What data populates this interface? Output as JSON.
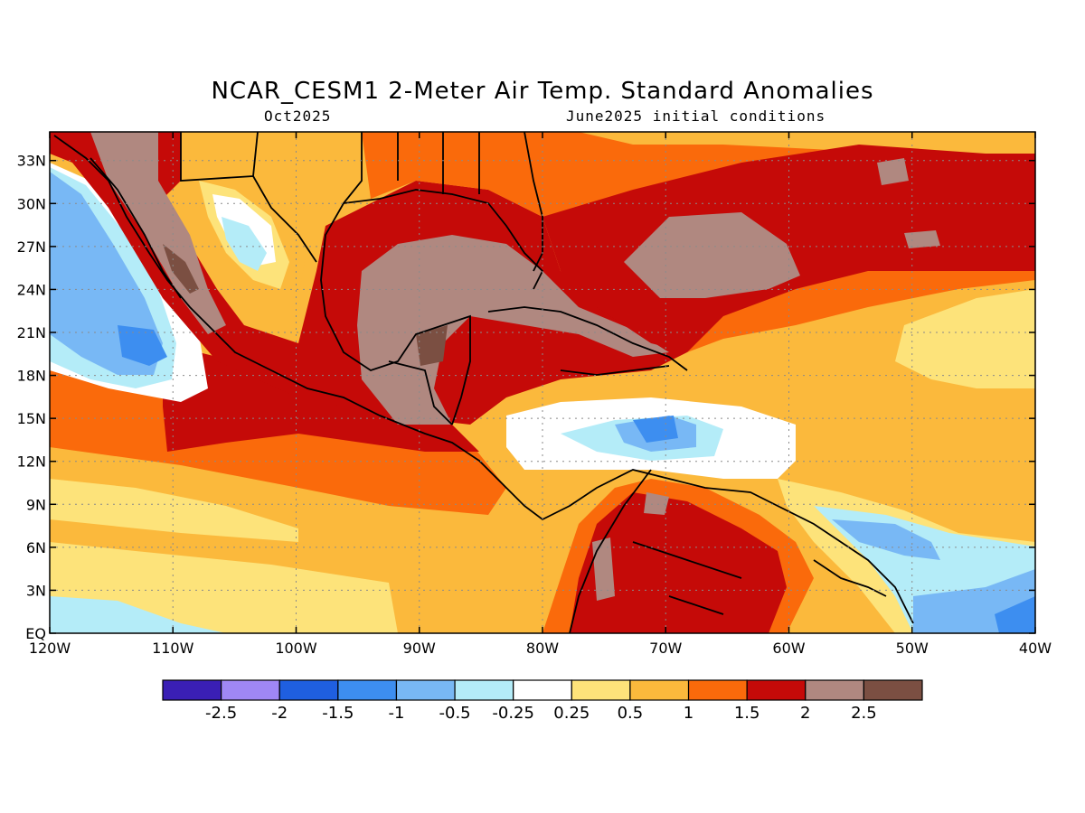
{
  "header": {
    "title": "NCAR_CESM1 2-Meter Air Temp. Standard Anomalies",
    "valid_month": "Oct2025",
    "init": "June2025 initial conditions"
  },
  "map": {
    "lon_range": [
      -120,
      -40
    ],
    "lat_range": [
      0,
      35
    ],
    "lat_ticks": [
      {
        "value": 0,
        "label": "EQ"
      },
      {
        "value": 3,
        "label": "3N"
      },
      {
        "value": 6,
        "label": "6N"
      },
      {
        "value": 9,
        "label": "9N"
      },
      {
        "value": 12,
        "label": "12N"
      },
      {
        "value": 15,
        "label": "15N"
      },
      {
        "value": 18,
        "label": "18N"
      },
      {
        "value": 21,
        "label": "21N"
      },
      {
        "value": 24,
        "label": "24N"
      },
      {
        "value": 27,
        "label": "27N"
      },
      {
        "value": 30,
        "label": "30N"
      },
      {
        "value": 33,
        "label": "33N"
      }
    ],
    "lon_ticks": [
      {
        "value": -120,
        "label": "120W"
      },
      {
        "value": -110,
        "label": "110W"
      },
      {
        "value": -100,
        "label": "100W"
      },
      {
        "value": -90,
        "label": "90W"
      },
      {
        "value": -80,
        "label": "80W"
      },
      {
        "value": -70,
        "label": "70W"
      },
      {
        "value": -60,
        "label": "60W"
      },
      {
        "value": -50,
        "label": "50W"
      },
      {
        "value": -40,
        "label": "40W"
      }
    ],
    "grid": "dotted"
  },
  "colorbar": {
    "colors": [
      "#3a1fb5",
      "#9f87f5",
      "#1f5fe0",
      "#3d8ef0",
      "#78b8f5",
      "#b4ecf8",
      "#ffffff",
      "#fde37a",
      "#fbb93c",
      "#fa6a0b",
      "#c50a08",
      "#b08880",
      "#7b4f42"
    ],
    "labels": [
      "-2.5",
      "-2",
      "-1.5",
      "-1",
      "-0.5",
      "-0.25",
      "0.25",
      "0.5",
      "1",
      "1.5",
      "2",
      "2.5"
    ]
  }
}
